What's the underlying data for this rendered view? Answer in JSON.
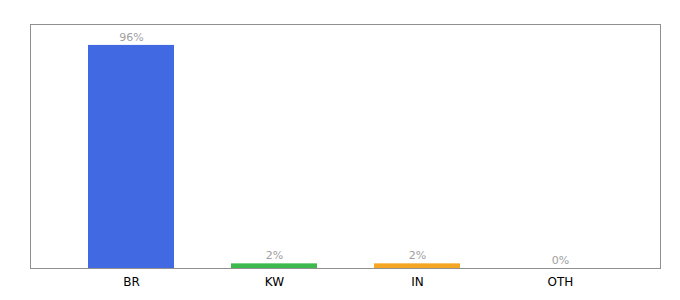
{
  "chart_data": {
    "type": "bar",
    "categories": [
      "BR",
      "KW",
      "IN",
      "OTH"
    ],
    "values": [
      96,
      2,
      2,
      0
    ],
    "value_labels": [
      "96%",
      "2%",
      "2%",
      "0%"
    ],
    "colors": [
      "#4169e1",
      "#3dba4e",
      "#f5a623",
      "#4472c4"
    ],
    "ylim": [
      0,
      105
    ],
    "yticks": [],
    "tick_labels": "x",
    "data_labels": true
  }
}
